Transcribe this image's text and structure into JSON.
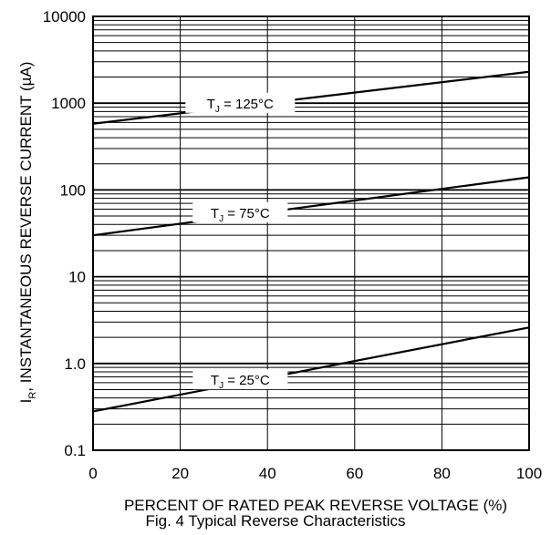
{
  "chart_data": {
    "type": "line",
    "title": "Fig. 4 Typical Reverse Characteristics",
    "xlabel": "PERCENT OF RATED PEAK REVERSE VOLTAGE (%)",
    "ylabel_main": "I",
    "ylabel_sub": "R",
    "ylabel_rest": ", INSTANTANEOUS REVERSE CURRENT (µA)",
    "x_scale": "linear",
    "y_scale": "log",
    "xlim": [
      0,
      100
    ],
    "ylim": [
      0.1,
      10000
    ],
    "x_ticks": [
      "0",
      "20",
      "40",
      "60",
      "80",
      "100"
    ],
    "y_ticks": [
      "0.1",
      "1.0",
      "10",
      "100",
      "1000",
      "10000"
    ],
    "grid": true,
    "series": [
      {
        "label_pre": "T",
        "label_sub": "J",
        "label_post": " = 125°C",
        "x": [
          0,
          100
        ],
        "y": [
          580,
          2300
        ]
      },
      {
        "label_pre": "T",
        "label_sub": "J",
        "label_post": " = 75°C",
        "x": [
          0,
          100
        ],
        "y": [
          30,
          140
        ]
      },
      {
        "label_pre": "T",
        "label_sub": "J",
        "label_post": " = 25°C",
        "x": [
          0,
          100
        ],
        "y": [
          0.28,
          2.6
        ]
      }
    ]
  }
}
